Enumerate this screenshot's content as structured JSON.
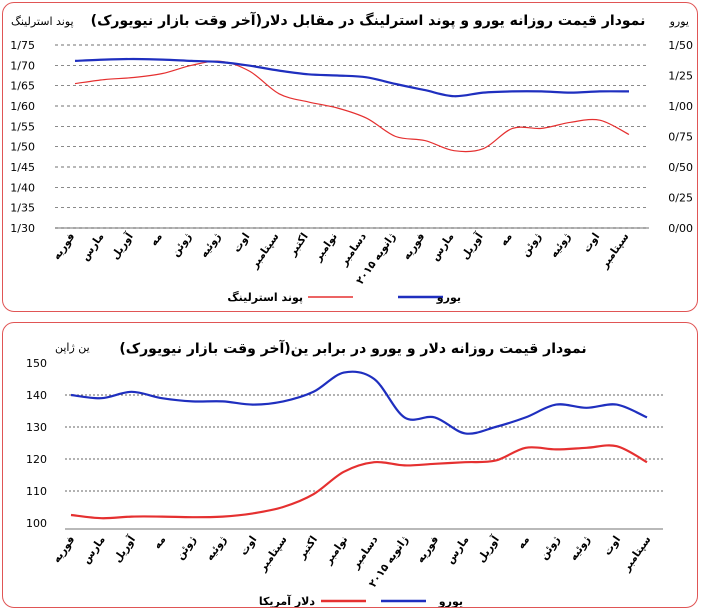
{
  "chart_data": [
    {
      "type": "line",
      "title": "نمودار قیمت روزانه یورو و پوند استرلینگ در مقابل دلار(آخر وقت بازار نیویورک)",
      "left_axis_label": "پوند استرلینگ",
      "right_axis_label": "یورو",
      "left_ticks": [
        "1/75",
        "1/70",
        "1/65",
        "1/60",
        "1/55",
        "1/50",
        "1/45",
        "1/40",
        "1/35",
        "1/30"
      ],
      "right_ticks": [
        "1/50",
        "1/25",
        "1/00",
        "0/75",
        "0/50",
        "0/25",
        "0/00"
      ],
      "left_ylim": [
        1.3,
        1.75
      ],
      "right_ylim": [
        0.0,
        1.5
      ],
      "grid": "horizontal dashed",
      "categories": [
        "فوریه",
        "مارس",
        "آوریل",
        "مه",
        "ژوئن",
        "ژوئیه",
        "اوت",
        "سپتامبر",
        "اکتبر",
        "نوامبر",
        "دسامبر",
        "ژانویه ۲۰۱۵",
        "فوریه",
        "مارس",
        "آوریل",
        "مه",
        "ژوئن",
        "ژوئیه",
        "اوت",
        "سپتامبر"
      ],
      "series": [
        {
          "name": "پوند استرلینگ",
          "axis": "left",
          "color": "#e53030",
          "x": [
            0,
            1,
            2,
            3,
            4,
            5,
            6,
            7,
            8,
            9,
            10,
            11,
            12,
            13,
            14,
            15,
            16,
            17,
            18,
            19
          ],
          "values": [
            1.655,
            1.665,
            1.67,
            1.68,
            1.7,
            1.71,
            1.685,
            1.63,
            1.61,
            1.595,
            1.57,
            1.525,
            1.515,
            1.49,
            1.495,
            1.545,
            1.545,
            1.56,
            1.565,
            1.53
          ]
        },
        {
          "name": "یورو",
          "axis": "right",
          "color": "#1f2fbf",
          "x": [
            0,
            1,
            2,
            3,
            4,
            5,
            6,
            7,
            8,
            9,
            10,
            11,
            12,
            13,
            14,
            15,
            16,
            17,
            18,
            19
          ],
          "values": [
            1.37,
            1.38,
            1.385,
            1.38,
            1.37,
            1.36,
            1.33,
            1.29,
            1.26,
            1.25,
            1.235,
            1.18,
            1.13,
            1.08,
            1.11,
            1.12,
            1.12,
            1.11,
            1.12,
            1.12
          ]
        }
      ],
      "legend_position": "bottom"
    },
    {
      "type": "line",
      "title": "نمودار قیمت روزانه دلار و یورو در برابر ین(آخر وقت بازار نیویورک)",
      "left_axis_label": "ین ژاپن",
      "left_ticks": [
        "150",
        "140",
        "130",
        "120",
        "110",
        "100"
      ],
      "ylim": [
        100,
        150
      ],
      "grid": "horizontal dashed",
      "categories": [
        "فوریه",
        "مارس",
        "آوریل",
        "مه",
        "ژوئن",
        "ژوئیه",
        "اوت",
        "سپتامبر",
        "اکتبر",
        "نوامبر",
        "دسامبر",
        "ژانویه ۲۰۱۵",
        "فوریه",
        "مارس",
        "آوریل",
        "مه",
        "ژوئن",
        "ژوئیه",
        "اوت",
        "سپتامبر"
      ],
      "series": [
        {
          "name": "دلار آمریکا",
          "color": "#e53030",
          "x": [
            0,
            1,
            2,
            3,
            4,
            5,
            6,
            7,
            8,
            9,
            10,
            11,
            12,
            13,
            14,
            15,
            16,
            17,
            18,
            19
          ],
          "values": [
            102.5,
            101.5,
            102,
            102,
            101.8,
            102,
            103,
            105,
            109,
            116,
            119,
            118,
            118.5,
            119,
            119.5,
            123.5,
            123,
            123.5,
            124,
            119
          ]
        },
        {
          "name": "یورو",
          "color": "#1f2fbf",
          "x": [
            0,
            1,
            2,
            3,
            4,
            5,
            6,
            7,
            8,
            9,
            10,
            11,
            12,
            13,
            14,
            15,
            16,
            17,
            18,
            19
          ],
          "values": [
            140,
            139,
            141,
            139,
            138,
            138,
            137,
            138,
            141,
            147,
            145,
            133,
            133,
            128,
            130,
            133,
            137,
            136,
            137,
            133
          ]
        }
      ],
      "legend_position": "bottom"
    }
  ]
}
